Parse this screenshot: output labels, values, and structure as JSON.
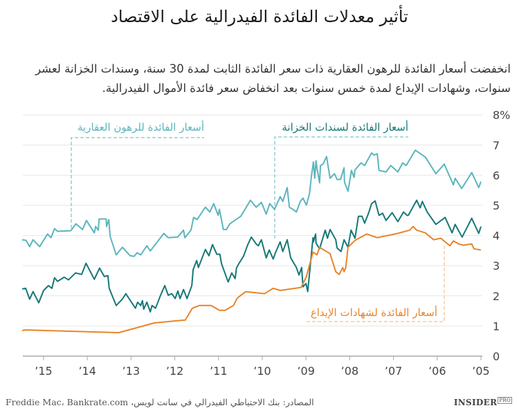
{
  "title": "تأثير معدلات الفائدة الفيدرالية على الاقتصاد",
  "subtitle": "انخفضت أسعار الفائدة للرهون العقارية ذات سعر الفائدة الثابت لمدة 30 سنة، وسندات الخزانة لعشر سنوات، وشهادات الإيداع لمدة خمس سنوات بعد انخفاض سعر فائدة الأموال الفيدرالية.",
  "footer": {
    "source": "المصادر: بنك الاحتياطي الفيدرالي في سانت لويس، Freddie Mac، Bankrate.com",
    "logo": "INSIDER",
    "logo_badge": "PRO"
  },
  "chart_data": {
    "type": "line",
    "title": "تأثير معدلات الفائدة الفيدرالية على الاقتصاد",
    "x_reversed": true,
    "xlim": [
      2005,
      2015.49
    ],
    "ylim": [
      0,
      8
    ],
    "grid": true,
    "y_ticks": [
      0,
      1,
      2,
      3,
      4,
      5,
      6,
      7,
      8
    ],
    "y_tick_labels": [
      "0",
      "1",
      "2",
      "3",
      "4",
      "5",
      "6",
      "7",
      "8%"
    ],
    "x_ticks": [
      2005,
      2006,
      2007,
      2008,
      2009,
      2010,
      2011,
      2012,
      2013,
      2014,
      2015
    ],
    "x_tick_labels": [
      "’05",
      "’06",
      "’07",
      "’08",
      "’09",
      "’10",
      "’11",
      "’12",
      "’13",
      "’14",
      "’15"
    ],
    "colors": {
      "mortgage": "#5bb5bc",
      "treasury": "#157877",
      "cd": "#e8842a"
    },
    "series": [
      {
        "name": "أسعار الفائدة للرهون العقارية",
        "key": "mortgage",
        "x": [
          2005.0,
          2005.05,
          2005.21,
          2005.44,
          2005.59,
          2005.63,
          2005.84,
          2006.03,
          2006.27,
          2006.5,
          2006.71,
          2006.79,
          2006.9,
          2007.06,
          2007.17,
          2007.33,
          2007.37,
          2007.45,
          2007.5,
          2007.66,
          2007.74,
          2007.88,
          2007.9,
          2007.96,
          2008.04,
          2008.12,
          2008.13,
          2008.21,
          2008.29,
          2008.35,
          2008.45,
          2008.53,
          2008.61,
          2008.67,
          2008.69,
          2008.75,
          2008.77,
          2008.8,
          2008.83,
          2008.88,
          2008.92,
          2008.99,
          2009.07,
          2009.13,
          2009.22,
          2009.3,
          2009.38,
          2009.43,
          2009.53,
          2009.59,
          2009.72,
          2009.83,
          2009.91,
          2010.02,
          2010.14,
          2010.27,
          2010.49,
          2010.74,
          2010.82,
          2010.89,
          2010.98,
          2011.01,
          2011.11,
          2011.2,
          2011.3,
          2011.49,
          2011.57,
          2011.63,
          2011.77,
          2011.8,
          2011.93,
          2012.15,
          2012.25,
          2012.56,
          2012.64,
          2012.78,
          2012.86,
          2012.93,
          2013.02,
          2013.2,
          2013.34,
          2013.48,
          2013.51,
          2013.56,
          2013.57,
          2013.65,
          2013.73,
          2013.75,
          2013.81,
          2013.84,
          2014.02,
          2014.11,
          2014.26,
          2014.38,
          2014.68,
          2014.75,
          2014.83,
          2014.91,
          2015.09,
          2015.24,
          2015.32,
          2015.4,
          2015.49
        ],
        "y": [
          5.79,
          5.59,
          6.09,
          5.56,
          5.9,
          5.68,
          6.37,
          6.05,
          6.6,
          6.83,
          6.32,
          6.41,
          6.11,
          6.32,
          6.11,
          6.16,
          6.71,
          6.67,
          6.74,
          6.32,
          6.41,
          6.18,
          5.93,
          6.16,
          5.47,
          5.77,
          6.25,
          5.86,
          5.86,
          6.05,
          5.9,
          6.62,
          6.37,
          6.32,
          5.75,
          6.25,
          6.48,
          5.9,
          6.44,
          5.93,
          5.4,
          5.01,
          5.24,
          5.13,
          4.78,
          4.87,
          4.94,
          5.59,
          5.13,
          5.29,
          4.87,
          5.06,
          4.71,
          5.1,
          4.94,
          5.17,
          4.64,
          4.39,
          4.2,
          4.2,
          4.87,
          4.67,
          5.06,
          4.78,
          4.94,
          4.53,
          4.6,
          4.18,
          3.93,
          4.18,
          3.95,
          3.93,
          4.07,
          3.49,
          3.66,
          3.36,
          3.43,
          3.31,
          3.33,
          3.61,
          3.36,
          3.98,
          4.53,
          4.3,
          4.55,
          4.55,
          4.55,
          4.18,
          4.3,
          4.09,
          4.5,
          4.2,
          4.39,
          4.16,
          4.14,
          4.23,
          3.93,
          4.05,
          3.63,
          3.86,
          3.63,
          3.84,
          3.86
        ]
      },
      {
        "name": "أسعار الفائدة لسندات الخزانة",
        "key": "treasury",
        "x": [
          2005.0,
          2005.05,
          2005.21,
          2005.43,
          2005.59,
          2005.66,
          2005.82,
          2006.03,
          2006.23,
          2006.34,
          2006.39,
          2006.47,
          2006.66,
          2006.69,
          2006.77,
          2006.9,
          2007.03,
          2007.17,
          2007.25,
          2007.33,
          2007.42,
          2007.5,
          2007.56,
          2007.66,
          2007.72,
          2007.8,
          2007.88,
          2007.97,
          2008.04,
          2008.13,
          2008.2,
          2008.29,
          2008.32,
          2008.45,
          2008.51,
          2008.56,
          2008.69,
          2008.77,
          2008.78,
          2008.83,
          2008.84,
          2008.96,
          2009.0,
          2009.07,
          2009.1,
          2009.16,
          2009.22,
          2009.35,
          2009.43,
          2009.53,
          2009.59,
          2009.7,
          2009.75,
          2009.84,
          2009.91,
          2010.02,
          2010.09,
          2010.14,
          2010.25,
          2010.33,
          2010.43,
          2010.54,
          2010.59,
          2010.62,
          2010.7,
          2010.78,
          2010.93,
          2010.97,
          2011.04,
          2011.14,
          2011.22,
          2011.3,
          2011.46,
          2011.5,
          2011.58,
          2011.61,
          2011.72,
          2011.8,
          2011.88,
          2011.93,
          2011.99,
          2012.07,
          2012.15,
          2012.23,
          2012.33,
          2012.44,
          2012.52,
          2012.56,
          2012.64,
          2012.71,
          2012.74,
          2012.78,
          2012.85,
          2012.9,
          2013.12,
          2013.2,
          2013.34,
          2013.5,
          2013.53,
          2013.61,
          2013.72,
          2013.84,
          2014.03,
          2014.13,
          2014.27,
          2014.43,
          2014.53,
          2014.68,
          2014.75,
          2014.81,
          2014.89,
          2015.0,
          2015.11,
          2015.24,
          2015.32,
          2015.41,
          2015.49
        ],
        "y": [
          4.3,
          4.07,
          4.57,
          3.95,
          4.37,
          4.09,
          4.6,
          4.37,
          4.78,
          5.13,
          4.92,
          5.17,
          4.67,
          4.67,
          4.78,
          4.46,
          4.76,
          4.5,
          4.74,
          4.67,
          5.15,
          5.06,
          4.78,
          4.41,
          4.64,
          4.64,
          3.91,
          4.18,
          3.61,
          3.86,
          3.47,
          3.59,
          3.86,
          4.2,
          3.91,
          4.18,
          3.56,
          3.75,
          4.05,
          3.79,
          3.93,
          2.14,
          2.41,
          2.3,
          2.94,
          2.69,
          2.94,
          3.26,
          3.86,
          3.47,
          3.79,
          3.43,
          3.22,
          3.52,
          3.26,
          3.86,
          3.66,
          3.72,
          3.95,
          3.7,
          3.31,
          3.06,
          2.92,
          2.57,
          2.76,
          2.46,
          3.06,
          3.38,
          3.38,
          3.7,
          3.33,
          3.54,
          2.94,
          3.17,
          2.87,
          2.34,
          1.91,
          2.21,
          1.91,
          2.16,
          1.91,
          2.07,
          2.02,
          2.34,
          2.0,
          1.59,
          1.68,
          1.47,
          1.79,
          1.56,
          1.84,
          1.68,
          1.79,
          1.59,
          2.07,
          1.89,
          1.68,
          2.25,
          2.67,
          2.64,
          2.92,
          2.55,
          3.08,
          2.71,
          2.76,
          2.53,
          2.62,
          2.48,
          2.6,
          2.25,
          2.34,
          2.18,
          1.77,
          2.14,
          1.89,
          2.25,
          2.23
        ]
      },
      {
        "name": "أسعار الفائدة لشهادات الإيداع",
        "key": "cd",
        "x": [
          2005.0,
          2005.16,
          2005.21,
          2005.4,
          2005.51,
          2005.63,
          2005.71,
          2005.92,
          2006.08,
          2006.27,
          2006.47,
          2006.55,
          2006.63,
          2006.9,
          2007.37,
          2007.61,
          2007.88,
          2008.04,
          2008.09,
          2008.13,
          2008.16,
          2008.24,
          2008.32,
          2008.45,
          2008.69,
          2008.75,
          2008.84,
          2008.99,
          2009.11,
          2009.59,
          2009.75,
          2009.95,
          2010.38,
          2010.57,
          2010.66,
          2010.85,
          2010.98,
          2011.17,
          2011.44,
          2011.6,
          2011.76,
          2012.47,
          2013.28,
          2015.41,
          2015.49
        ],
        "y": [
          3.52,
          3.56,
          3.72,
          3.68,
          3.72,
          3.82,
          3.66,
          3.91,
          3.86,
          4.09,
          4.18,
          4.3,
          4.18,
          4.07,
          3.93,
          4.05,
          3.84,
          3.61,
          2.94,
          2.8,
          2.94,
          2.71,
          2.8,
          3.4,
          3.61,
          3.36,
          3.45,
          2.64,
          2.28,
          2.18,
          2.25,
          2.07,
          2.14,
          1.93,
          1.68,
          1.52,
          1.52,
          1.68,
          1.68,
          1.59,
          1.2,
          1.1,
          0.78,
          0.87,
          0.85
        ]
      }
    ]
  }
}
